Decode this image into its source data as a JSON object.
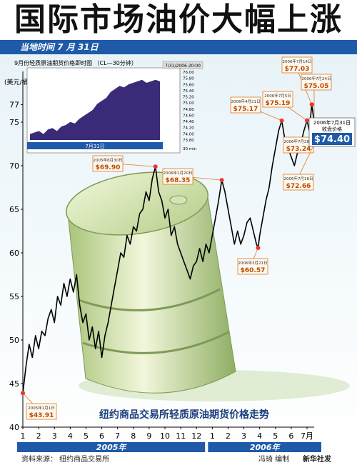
{
  "header": {
    "title": "国际市场油价大幅上涨",
    "subtitle": "当地时间 7 月 31日"
  },
  "colors": {
    "banner": "#1e5aa8",
    "callout": "#e07820",
    "line": "#000000",
    "inset_fill": "#3a2a78",
    "price_box": "#1e5aa8"
  },
  "chart_data": {
    "type": "line",
    "title": "纽约商品交易所轻质原油期货价格走势",
    "ylabel": "(美元/桶)",
    "ylim": [
      40,
      80
    ],
    "y_ticks": [
      40,
      45,
      50,
      55,
      60,
      65,
      70,
      75,
      77
    ],
    "x_tick_labels": [
      "1",
      "2",
      "3",
      "4",
      "5",
      "6",
      "7",
      "8",
      "9",
      "10",
      "11",
      "12",
      "1",
      "2",
      "3",
      "4",
      "5",
      "6",
      "7月"
    ],
    "year_labels": [
      "2005年",
      "2006年"
    ],
    "series_points": [
      [
        0,
        43.9
      ],
      [
        0.2,
        47
      ],
      [
        0.4,
        49.5
      ],
      [
        0.6,
        48
      ],
      [
        0.8,
        50.5
      ],
      [
        1.0,
        49
      ],
      [
        1.2,
        51
      ],
      [
        1.4,
        50.5
      ],
      [
        1.6,
        52.5
      ],
      [
        1.8,
        53.5
      ],
      [
        2.0,
        52
      ],
      [
        2.2,
        55
      ],
      [
        2.4,
        54
      ],
      [
        2.6,
        56.5
      ],
      [
        2.8,
        55
      ],
      [
        3.0,
        57
      ],
      [
        3.2,
        55.5
      ],
      [
        3.4,
        57.5
      ],
      [
        3.6,
        54
      ],
      [
        3.8,
        52
      ],
      [
        4.0,
        53
      ],
      [
        4.2,
        50
      ],
      [
        4.4,
        51.5
      ],
      [
        4.6,
        49
      ],
      [
        4.8,
        51
      ],
      [
        5.0,
        48
      ],
      [
        5.2,
        50.5
      ],
      [
        5.4,
        52
      ],
      [
        5.6,
        54
      ],
      [
        5.8,
        56
      ],
      [
        6.0,
        58
      ],
      [
        6.2,
        60
      ],
      [
        6.4,
        59.5
      ],
      [
        6.6,
        62
      ],
      [
        6.8,
        61
      ],
      [
        7.0,
        63
      ],
      [
        7.2,
        62.5
      ],
      [
        7.4,
        64.5
      ],
      [
        7.6,
        65
      ],
      [
        7.8,
        67
      ],
      [
        8.0,
        66
      ],
      [
        8.2,
        68.5
      ],
      [
        8.4,
        69.9
      ],
      [
        8.6,
        67
      ],
      [
        8.8,
        66
      ],
      [
        9.0,
        64
      ],
      [
        9.2,
        65
      ],
      [
        9.4,
        62
      ],
      [
        9.6,
        63
      ],
      [
        9.8,
        61
      ],
      [
        10.0,
        60
      ],
      [
        10.2,
        59
      ],
      [
        10.4,
        58
      ],
      [
        10.6,
        57
      ],
      [
        10.8,
        58.5
      ],
      [
        11.0,
        59
      ],
      [
        11.2,
        60.5
      ],
      [
        11.4,
        59
      ],
      [
        11.6,
        61
      ],
      [
        11.8,
        60
      ],
      [
        12.0,
        62
      ],
      [
        12.2,
        64
      ],
      [
        12.4,
        66
      ],
      [
        12.6,
        68.35
      ],
      [
        12.8,
        67
      ],
      [
        13.0,
        65
      ],
      [
        13.2,
        63
      ],
      [
        13.4,
        61
      ],
      [
        13.6,
        62.5
      ],
      [
        13.8,
        61
      ],
      [
        14.0,
        62
      ],
      [
        14.2,
        63.5
      ],
      [
        14.4,
        64
      ],
      [
        14.6,
        62.5
      ],
      [
        14.8,
        61
      ],
      [
        14.9,
        60.57
      ],
      [
        15.0,
        62
      ],
      [
        15.2,
        64
      ],
      [
        15.4,
        66
      ],
      [
        15.6,
        67.5
      ],
      [
        15.8,
        70
      ],
      [
        16.0,
        72
      ],
      [
        16.2,
        74
      ],
      [
        16.4,
        75.17
      ],
      [
        16.6,
        73
      ],
      [
        16.8,
        72
      ],
      [
        17.0,
        71
      ],
      [
        17.2,
        70
      ],
      [
        17.4,
        71.5
      ],
      [
        17.6,
        72.5
      ],
      [
        17.8,
        74
      ],
      [
        18.0,
        75.19
      ],
      [
        18.15,
        74
      ],
      [
        18.3,
        77.03
      ],
      [
        18.45,
        75.05
      ],
      [
        18.6,
        73.2
      ],
      [
        18.75,
        74.4
      ]
    ],
    "annotations": [
      {
        "date": "2005年1月1日",
        "price": "$43.91",
        "x": 0,
        "y": 43.91
      },
      {
        "date": "2005年8月30日",
        "price": "$69.90",
        "x": 8.4,
        "y": 69.9
      },
      {
        "date": "2006年1月20日",
        "price": "$68.35",
        "x": 12.6,
        "y": 68.35
      },
      {
        "date": "2006年3月21日",
        "price": "$60.57",
        "x": 14.9,
        "y": 60.57
      },
      {
        "date": "2006年4月21日",
        "price": "$75.17",
        "x": 16.4,
        "y": 75.17
      },
      {
        "date": "2006年7月5日",
        "price": "$75.19",
        "x": 18.0,
        "y": 75.19
      },
      {
        "date": "2006年7月14日",
        "price": "$77.03",
        "x": 18.3,
        "y": 77.03
      },
      {
        "date": "2006年7月24日",
        "price": "$75.05",
        "x": 18.45,
        "y": 75.05
      },
      {
        "date": "2006年7月28日",
        "price": "$73.24",
        "x": 18.6,
        "y": 73.24
      },
      {
        "date": "2006年7月18日",
        "price": "$72.66",
        "x": 18.5,
        "y": 72.66
      }
    ],
    "final": {
      "date": "2006年7月31日",
      "label": "收盘价格",
      "price": "$74.40",
      "x": 18.75,
      "y": 74.4
    },
    "inset": {
      "title": "9月份轻质原油期货价格即时图 （CL—30分钟）",
      "timestamp": "7/31/2006 20:00",
      "xlabel": "7月31日",
      "unit": "30 min",
      "y_ticks": [
        "76.00",
        "75.80",
        "75.60",
        "75.40",
        "75.20",
        "75.00",
        "74.80",
        "74.60",
        "74.40",
        "74.20",
        "74.00",
        "73.80"
      ],
      "values": [
        73.9,
        73.95,
        74.0,
        73.9,
        74.05,
        74.1,
        74.0,
        74.15,
        74.2,
        74.3,
        74.25,
        74.4,
        74.5,
        74.6,
        74.7,
        74.9,
        75.0,
        75.1,
        75.3,
        75.4,
        75.5,
        75.45,
        75.55,
        75.6,
        75.65,
        75.7,
        75.6,
        75.65,
        75.7,
        75.65
      ]
    }
  },
  "footer": {
    "source": "资料来源：  纽约商品交易所",
    "editor": "冯琦  编制",
    "agency": "新华社发"
  }
}
